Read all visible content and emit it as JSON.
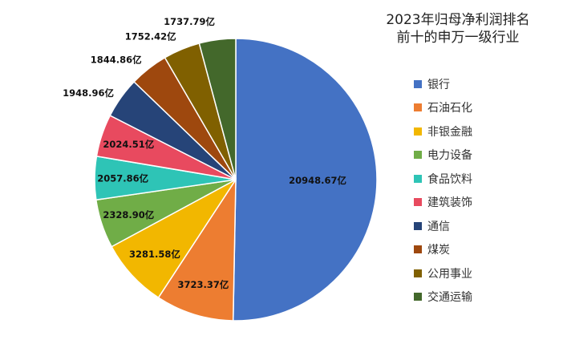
{
  "chart_data": {
    "type": "pie",
    "title": "2023年归母净利润排名\n前十的申万一级行业",
    "title_lines": [
      "2023年归母净利润排名",
      "前十的申万一级行业"
    ],
    "unit": "亿",
    "categories": [
      "银行",
      "石油石化",
      "非银金融",
      "电力设备",
      "食品饮料",
      "建筑装饰",
      "通信",
      "煤炭",
      "公用事业",
      "交通运输"
    ],
    "values": [
      20948.67,
      3723.37,
      3281.58,
      2328.9,
      2057.86,
      2024.51,
      1948.96,
      1844.86,
      1752.42,
      1737.79
    ],
    "labels": [
      "20948.67亿",
      "3723.37亿",
      "3281.58亿",
      "2328.90亿",
      "2057.86亿",
      "2024.51亿",
      "1948.96亿",
      "1844.86亿",
      "1752.42亿",
      "1737.79亿"
    ],
    "colors": [
      "#4472C4",
      "#ED7D31",
      "#F2B700",
      "#70AD47",
      "#2EC4B6",
      "#E84A5F",
      "#264478",
      "#9E480E",
      "#806000",
      "#43682B"
    ],
    "legend_position": "right"
  }
}
